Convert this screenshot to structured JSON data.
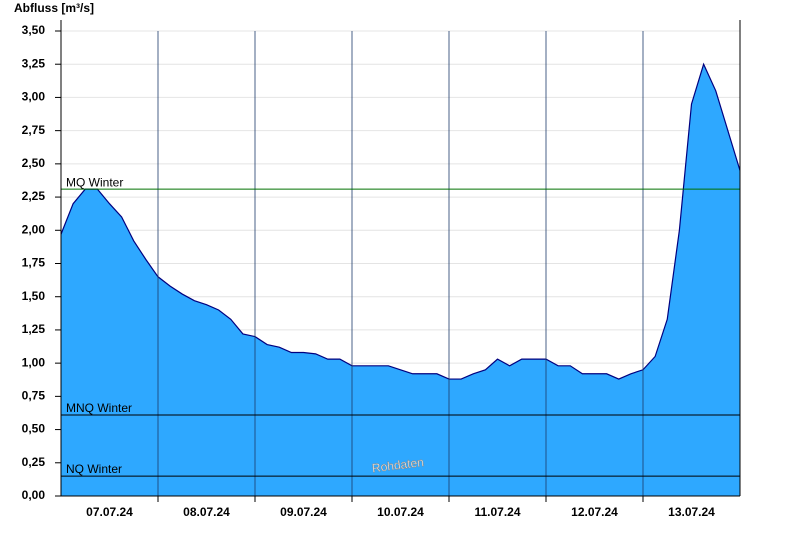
{
  "chart_data": {
    "type": "area",
    "title": "Abfluss [m³/s]",
    "x": [
      0,
      3,
      6,
      9,
      12,
      15,
      18,
      21,
      24,
      27,
      30,
      33,
      36,
      39,
      42,
      45,
      48,
      51,
      54,
      57,
      60,
      63,
      66,
      69,
      72,
      75,
      78,
      81,
      84,
      87,
      90,
      93,
      96,
      99,
      102,
      105,
      108,
      111,
      114,
      117,
      120,
      123,
      126,
      129,
      132,
      135,
      138,
      141,
      144,
      147,
      150,
      153,
      156,
      159,
      162,
      165,
      168
    ],
    "values": [
      1.97,
      2.2,
      2.31,
      2.31,
      2.2,
      2.1,
      1.92,
      1.78,
      1.65,
      1.58,
      1.52,
      1.47,
      1.44,
      1.4,
      1.33,
      1.22,
      1.2,
      1.14,
      1.12,
      1.08,
      1.08,
      1.07,
      1.03,
      1.03,
      0.98,
      0.98,
      0.98,
      0.98,
      0.95,
      0.92,
      0.92,
      0.92,
      0.88,
      0.88,
      0.92,
      0.95,
      1.03,
      0.98,
      1.03,
      1.03,
      1.03,
      0.98,
      0.98,
      0.92,
      0.92,
      0.92,
      0.88,
      0.92,
      0.95,
      1.05,
      1.33,
      2.0,
      2.95,
      3.25,
      3.05,
      2.75,
      2.45
    ],
    "color": "#2ea8ff",
    "line_color": "#00007f",
    "xlim": [
      0,
      168
    ],
    "xticks": [
      {
        "value": 12,
        "label": "07.07.24"
      },
      {
        "value": 36,
        "label": "08.07.24"
      },
      {
        "value": 60,
        "label": "09.07.24"
      },
      {
        "value": 84,
        "label": "10.07.24"
      },
      {
        "value": 108,
        "label": "11.07.24"
      },
      {
        "value": 132,
        "label": "12.07.24"
      },
      {
        "value": 156,
        "label": "13.07.24"
      }
    ],
    "xgrid": [
      24,
      48,
      72,
      96,
      120,
      144
    ],
    "ylim": [
      0,
      3.5
    ],
    "yticks": [
      {
        "value": 0,
        "label": "0,00"
      },
      {
        "value": 0.25,
        "label": "0,25"
      },
      {
        "value": 0.5,
        "label": "0,50"
      },
      {
        "value": 0.75,
        "label": "0,75"
      },
      {
        "value": 1,
        "label": "1,00"
      },
      {
        "value": 1.25,
        "label": "1,25"
      },
      {
        "value": 1.5,
        "label": "1,50"
      },
      {
        "value": 1.75,
        "label": "1,75"
      },
      {
        "value": 2,
        "label": "2,00"
      },
      {
        "value": 2.25,
        "label": "2,25"
      },
      {
        "value": 2.5,
        "label": "2,50"
      },
      {
        "value": 2.75,
        "label": "2,75"
      },
      {
        "value": 3,
        "label": "3,00"
      },
      {
        "value": 3.25,
        "label": "3,25"
      },
      {
        "value": 3.5,
        "label": "3,50"
      }
    ],
    "grid": true,
    "thresholds": [
      {
        "label": "MQ Winter",
        "value": 2.31,
        "color": "#007000"
      },
      {
        "label": "MNQ Winter",
        "value": 0.61,
        "color": "#000000"
      },
      {
        "label": "NQ Winter",
        "value": 0.15,
        "color": "#000000"
      }
    ],
    "watermark": "Rohdaten"
  }
}
